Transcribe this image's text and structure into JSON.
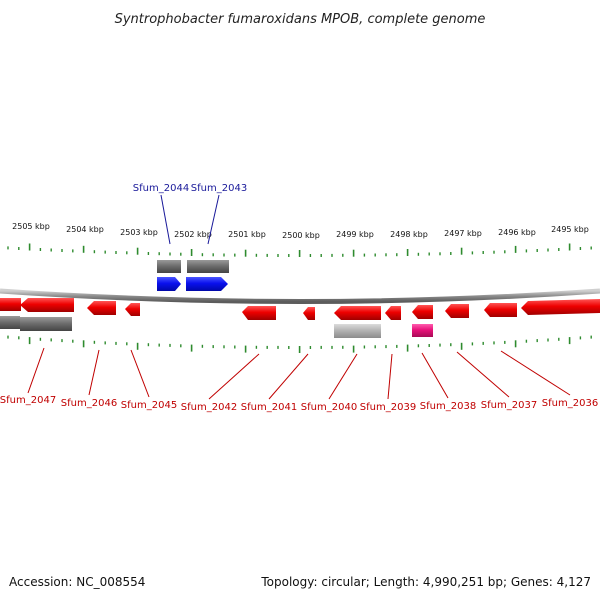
{
  "title": "Syntrophobacter fumaroxidans MPOB, complete genome",
  "accession": "Accession: NC_008554",
  "topology": "Topology: circular; Length: 4,990,251 bp; Genes: 4,127",
  "colors": {
    "backbone": "#8a8a8a",
    "ticks": "#2e8b2e",
    "forward_gene": "#0a10ee",
    "reverse_gene": "#e80000",
    "rna_gene": "#e8127a",
    "label_blue": "#1a1a9a",
    "label_red": "#c00000",
    "gray_feature": "#6e6e6e",
    "lightgray_feature": "#b4b4b4"
  },
  "scale_labels": [
    "2505 kbp",
    "2504 kbp",
    "2503 kbp",
    "2502 kbp",
    "2501 kbp",
    "2500 kbp",
    "2499 kbp",
    "2498 kbp",
    "2497 kbp",
    "2496 kbp",
    "2495 kbp"
  ],
  "top_labels": [
    "Sfum_2044",
    "Sfum_2043"
  ],
  "bottom_labels": [
    "Sfum_2047",
    "Sfum_2046",
    "Sfum_2045",
    "Sfum_2042",
    "Sfum_2041",
    "Sfum_2040",
    "Sfum_2039",
    "Sfum_2038",
    "Sfum_2037",
    "Sfum_2036"
  ]
}
